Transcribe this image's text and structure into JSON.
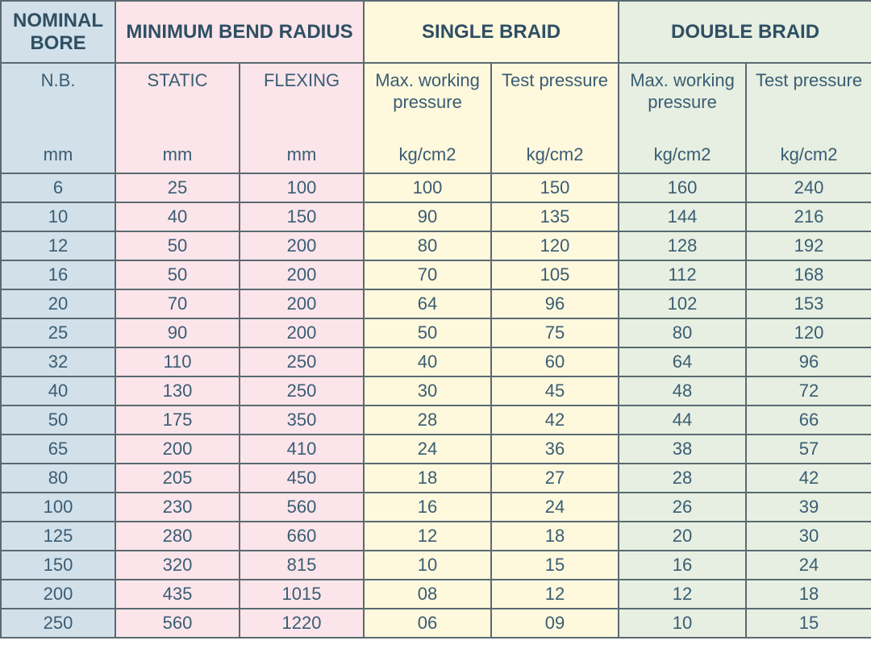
{
  "colors": {
    "blue": "#d1e0e9",
    "pink": "#fbe5ea",
    "cream": "#fef8dd",
    "mint": "#e6efe1",
    "border": "#5a6a72",
    "text": "#3a5d74",
    "header_text": "#2f4f63"
  },
  "header_groups": {
    "nominal_bore": "NOMINAL BORE",
    "min_bend_radius": "MINIMUM BEND RADIUS",
    "single_braid": "SINGLE BRAID",
    "double_braid": "DOUBLE BRAID"
  },
  "subheaders": {
    "nb": "N.B.",
    "static": "STATIC",
    "flexing": "FLEXING",
    "mwp": "Max. working pressure",
    "test": "Test pressure"
  },
  "units": {
    "mm": "mm",
    "kgcm2": "kg/cm2"
  },
  "rows": [
    {
      "nb": "6",
      "static": "25",
      "flex": "100",
      "s_mwp": "100",
      "s_test": "150",
      "d_mwp": "160",
      "d_test": "240"
    },
    {
      "nb": "10",
      "static": "40",
      "flex": "150",
      "s_mwp": "90",
      "s_test": "135",
      "d_mwp": "144",
      "d_test": "216"
    },
    {
      "nb": "12",
      "static": "50",
      "flex": "200",
      "s_mwp": "80",
      "s_test": "120",
      "d_mwp": "128",
      "d_test": "192"
    },
    {
      "nb": "16",
      "static": "50",
      "flex": "200",
      "s_mwp": "70",
      "s_test": "105",
      "d_mwp": "112",
      "d_test": "168"
    },
    {
      "nb": "20",
      "static": "70",
      "flex": "200",
      "s_mwp": "64",
      "s_test": "96",
      "d_mwp": "102",
      "d_test": "153"
    },
    {
      "nb": "25",
      "static": "90",
      "flex": "200",
      "s_mwp": "50",
      "s_test": "75",
      "d_mwp": "80",
      "d_test": "120"
    },
    {
      "nb": "32",
      "static": "110",
      "flex": "250",
      "s_mwp": "40",
      "s_test": "60",
      "d_mwp": "64",
      "d_test": "96"
    },
    {
      "nb": "40",
      "static": "130",
      "flex": "250",
      "s_mwp": "30",
      "s_test": "45",
      "d_mwp": "48",
      "d_test": "72"
    },
    {
      "nb": "50",
      "static": "175",
      "flex": "350",
      "s_mwp": "28",
      "s_test": "42",
      "d_mwp": "44",
      "d_test": "66"
    },
    {
      "nb": "65",
      "static": "200",
      "flex": "410",
      "s_mwp": "24",
      "s_test": "36",
      "d_mwp": "38",
      "d_test": "57"
    },
    {
      "nb": "80",
      "static": "205",
      "flex": "450",
      "s_mwp": "18",
      "s_test": "27",
      "d_mwp": "28",
      "d_test": "42"
    },
    {
      "nb": "100",
      "static": "230",
      "flex": "560",
      "s_mwp": "16",
      "s_test": "24",
      "d_mwp": "26",
      "d_test": "39"
    },
    {
      "nb": "125",
      "static": "280",
      "flex": "660",
      "s_mwp": "12",
      "s_test": "18",
      "d_mwp": "20",
      "d_test": "30"
    },
    {
      "nb": "150",
      "static": "320",
      "flex": "815",
      "s_mwp": "10",
      "s_test": "15",
      "d_mwp": "16",
      "d_test": "24"
    },
    {
      "nb": "200",
      "static": "435",
      "flex": "1015",
      "s_mwp": "08",
      "s_test": "12",
      "d_mwp": "12",
      "d_test": "18"
    },
    {
      "nb": "250",
      "static": "560",
      "flex": "1220",
      "s_mwp": "06",
      "s_test": "09",
      "d_mwp": "10",
      "d_test": "15"
    }
  ]
}
